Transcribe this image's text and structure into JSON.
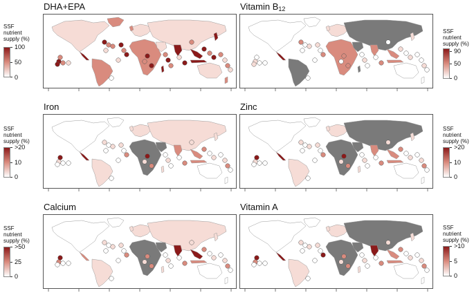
{
  "panels": [
    {
      "id": "dha",
      "title_main": "DHA+EPA",
      "title_sub": "",
      "legend": {
        "l1": "SSF",
        "l2": "nutrient",
        "l3": "supply (%)",
        "labels": [
          "100",
          "50",
          "0"
        ],
        "color": "#8b1a1a"
      }
    },
    {
      "id": "b12",
      "title_main": "Vitamin B",
      "title_sub": "12",
      "legend": {
        "l1": "SSF",
        "l2": "nutrient",
        "l3": "supply (%)",
        "labels": [
          "90",
          "50",
          "0"
        ],
        "color": "#8b1a1a"
      }
    },
    {
      "id": "iron",
      "title_main": "Iron",
      "title_sub": "",
      "legend": {
        "l1": "SSF",
        "l2": "nutrient",
        "l3": "supply (%)",
        "labels": [
          ">20",
          "10",
          "0"
        ],
        "color": "#8b1a1a"
      }
    },
    {
      "id": "zinc",
      "title_main": "Zinc",
      "title_sub": "",
      "legend": {
        "l1": "SSF",
        "l2": "nutrient",
        "l3": "supply (%)",
        "labels": [
          ">20",
          "10",
          "0"
        ],
        "color": "#8b1a1a"
      }
    },
    {
      "id": "calcium",
      "title_main": "Calcium",
      "title_sub": "",
      "legend": {
        "l1": "SSF",
        "l2": "nutrient",
        "l3": "supply (%)",
        "labels": [
          ">50",
          "25",
          "0"
        ],
        "color": "#8b1a1a"
      }
    },
    {
      "id": "vita",
      "title_main": "Vitamin A",
      "title_sub": "",
      "legend": {
        "l1": "SSF",
        "l2": "nutrient",
        "l3": "supply (%)",
        "labels": [
          ">10",
          "5",
          "0"
        ],
        "color": "#8b1a1a"
      }
    }
  ],
  "colors": {
    "max": "#8b1a1a",
    "mid": "#d98b7e",
    "low": "#f6dcd6",
    "none": "#ffffff",
    "nodata": "#7a7a7a",
    "outline": "#9a9a9a"
  }
}
